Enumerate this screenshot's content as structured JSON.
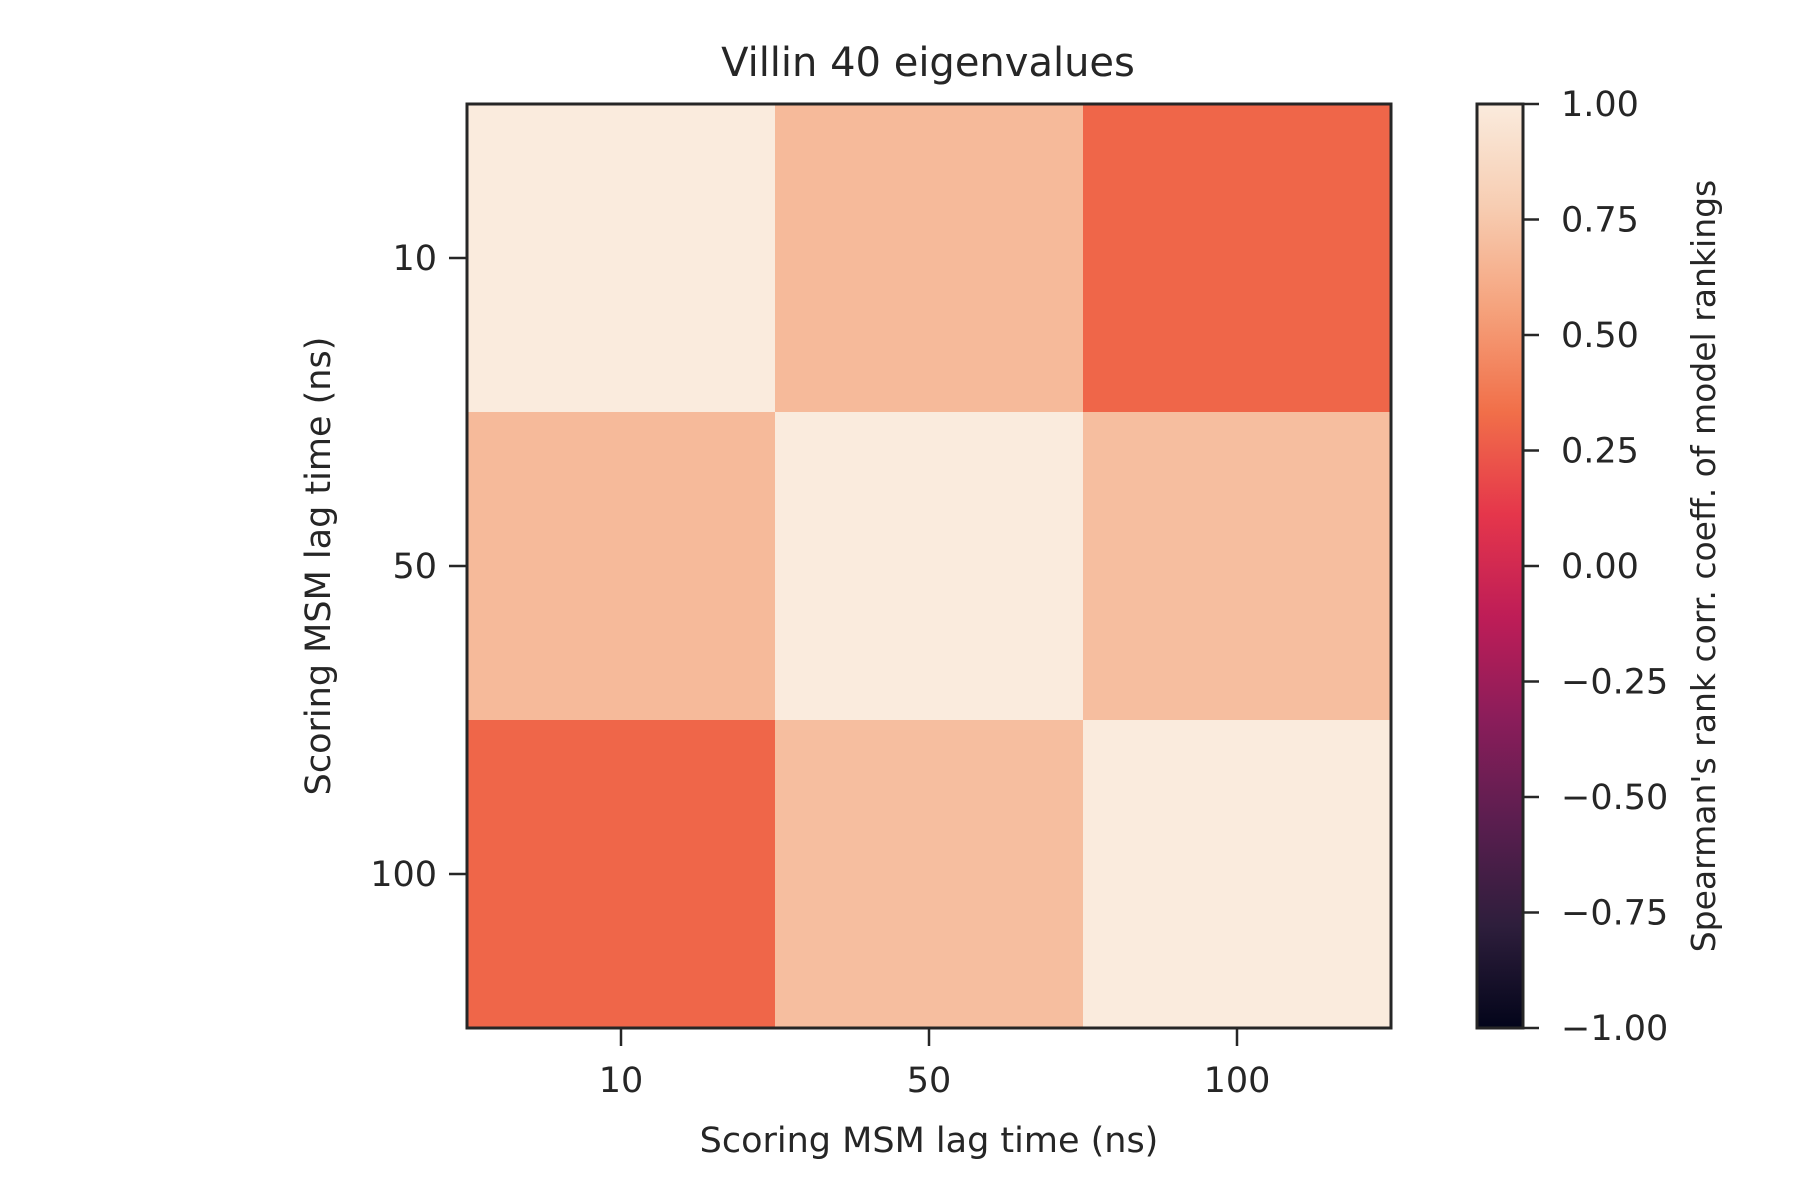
{
  "chart_data": {
    "type": "heatmap",
    "title": "Villin 40 eigenvalues",
    "xlabel": "Scoring MSM lag time (ns)",
    "ylabel": "Scoring MSM lag time (ns)",
    "x_categories": [
      "10",
      "50",
      "100"
    ],
    "y_categories": [
      "10",
      "50",
      "100"
    ],
    "values": [
      [
        1.0,
        0.68,
        0.3
      ],
      [
        0.68,
        1.0,
        0.7
      ],
      [
        0.3,
        0.7,
        1.0
      ]
    ],
    "colorbar": {
      "label": "Spearman's rank corr. coeff. of model rankings",
      "range": [
        -1.0,
        1.0
      ],
      "ticks": [
        "1.00",
        "0.75",
        "0.50",
        "0.25",
        "0.00",
        "−0.25",
        "−0.50",
        "−0.75",
        "−1.00"
      ],
      "tick_values": [
        1.0,
        0.75,
        0.5,
        0.25,
        0.0,
        -0.25,
        -0.5,
        -0.75,
        -1.0
      ],
      "colormap": "rocket",
      "colormap_stops": [
        "#03051a",
        "#2e1e3c",
        "#5a1e4f",
        "#8a1d5a",
        "#be1d57",
        "#e5364b",
        "#f16f49",
        "#f5a27c",
        "#f7cdb2",
        "#faebdd"
      ]
    },
    "grid": false
  }
}
